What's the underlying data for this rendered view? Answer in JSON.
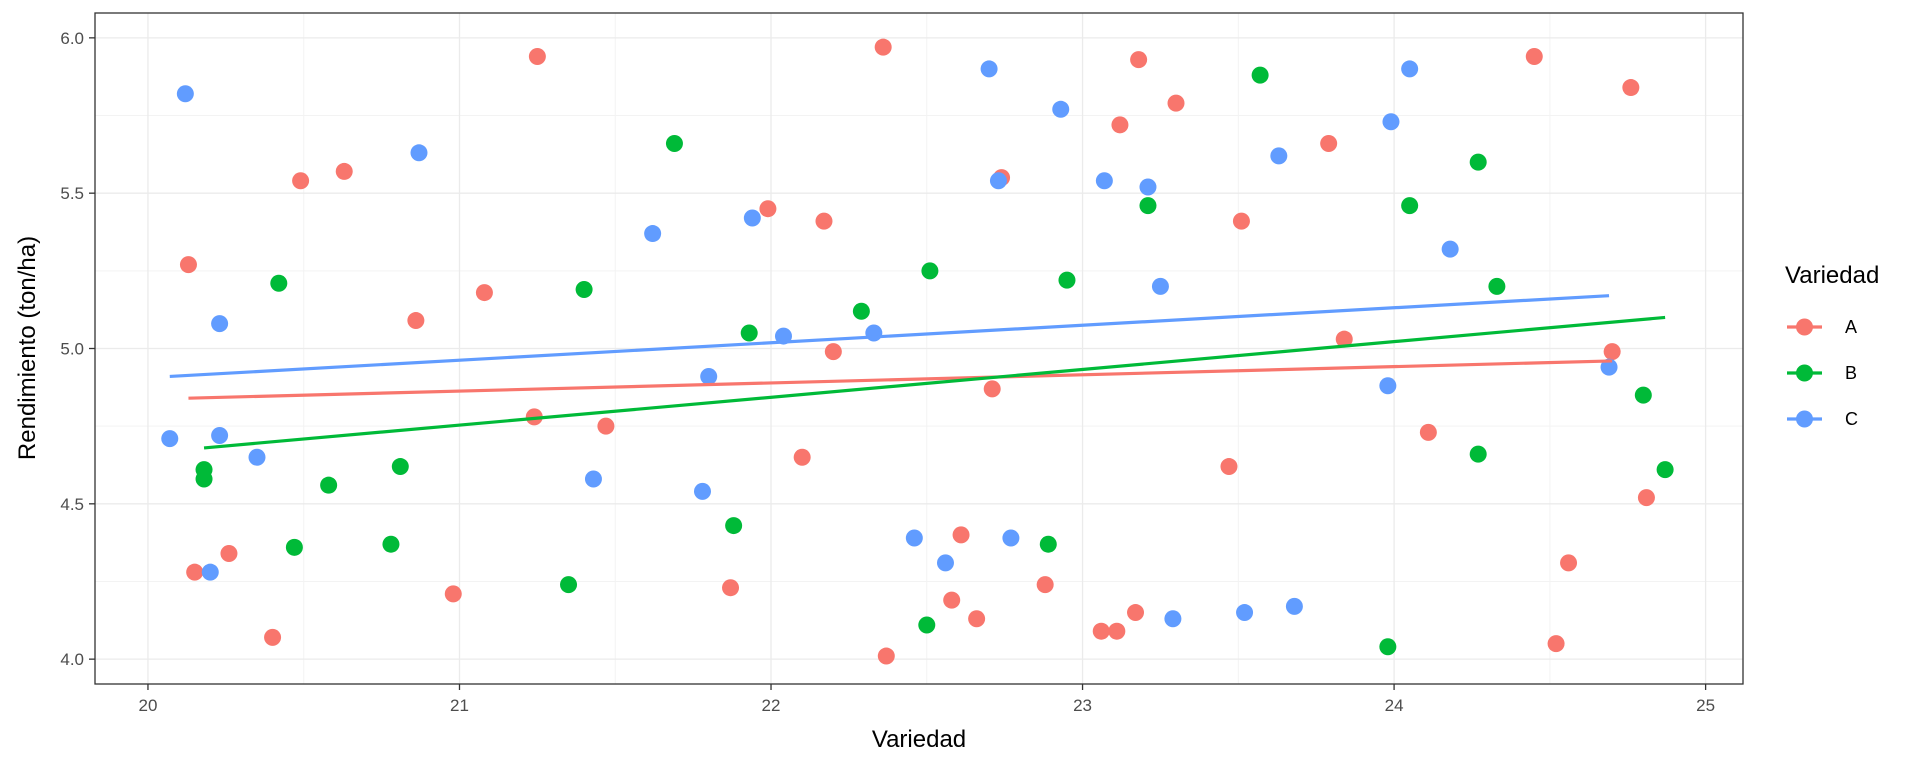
{
  "chart_data": {
    "type": "scatter",
    "title": "",
    "xlabel": "Variedad",
    "ylabel": "Rendimiento (ton/ha)",
    "xlim": [
      19.83,
      25.12
    ],
    "ylim": [
      3.92,
      6.08
    ],
    "x_ticks": [
      20,
      21,
      22,
      23,
      24,
      25
    ],
    "y_ticks": [
      4.0,
      4.5,
      5.0,
      5.5,
      6.0
    ],
    "x_tick_labels": [
      "20",
      "21",
      "22",
      "23",
      "24",
      "25"
    ],
    "y_tick_labels": [
      "4.0",
      "4.5",
      "5.0",
      "5.5",
      "6.0"
    ],
    "grid": true,
    "legend": {
      "title": "Variedad",
      "placement": "right"
    },
    "series": [
      {
        "name": "A",
        "color": "#F8766D",
        "points": [
          [
            20.13,
            5.27
          ],
          [
            20.15,
            4.28
          ],
          [
            20.26,
            4.34
          ],
          [
            20.4,
            4.07
          ],
          [
            20.49,
            5.54
          ],
          [
            20.63,
            5.57
          ],
          [
            20.86,
            5.09
          ],
          [
            20.98,
            4.21
          ],
          [
            21.08,
            5.18
          ],
          [
            21.24,
            4.78
          ],
          [
            21.25,
            5.94
          ],
          [
            21.47,
            4.75
          ],
          [
            21.87,
            4.23
          ],
          [
            21.99,
            5.45
          ],
          [
            22.1,
            4.65
          ],
          [
            22.17,
            5.41
          ],
          [
            22.2,
            4.99
          ],
          [
            22.36,
            5.97
          ],
          [
            22.37,
            4.01
          ],
          [
            22.61,
            4.4
          ],
          [
            22.58,
            4.19
          ],
          [
            22.66,
            4.13
          ],
          [
            22.71,
            4.87
          ],
          [
            22.74,
            5.55
          ],
          [
            22.88,
            4.24
          ],
          [
            23.06,
            4.09
          ],
          [
            23.11,
            4.09
          ],
          [
            23.12,
            5.72
          ],
          [
            23.17,
            4.15
          ],
          [
            23.18,
            5.93
          ],
          [
            23.3,
            5.79
          ],
          [
            23.47,
            4.62
          ],
          [
            23.51,
            5.41
          ],
          [
            23.79,
            5.66
          ],
          [
            23.84,
            5.03
          ],
          [
            24.11,
            4.73
          ],
          [
            24.45,
            5.94
          ],
          [
            24.52,
            4.05
          ],
          [
            24.56,
            4.31
          ],
          [
            24.7,
            4.99
          ],
          [
            24.76,
            5.84
          ],
          [
            24.81,
            4.52
          ]
        ],
        "trend": [
          [
            20.13,
            4.84
          ],
          [
            24.7,
            4.96
          ]
        ]
      },
      {
        "name": "B",
        "color": "#00BA38",
        "points": [
          [
            20.18,
            4.61
          ],
          [
            20.18,
            4.58
          ],
          [
            20.42,
            5.21
          ],
          [
            20.47,
            4.36
          ],
          [
            20.58,
            4.56
          ],
          [
            20.78,
            4.37
          ],
          [
            20.81,
            4.62
          ],
          [
            21.35,
            4.24
          ],
          [
            21.4,
            5.19
          ],
          [
            21.69,
            5.66
          ],
          [
            21.88,
            4.43
          ],
          [
            21.93,
            5.05
          ],
          [
            22.29,
            5.12
          ],
          [
            22.5,
            4.11
          ],
          [
            22.51,
            5.25
          ],
          [
            22.89,
            4.37
          ],
          [
            22.95,
            5.22
          ],
          [
            23.21,
            5.46
          ],
          [
            23.57,
            5.88
          ],
          [
            23.98,
            4.04
          ],
          [
            24.05,
            5.46
          ],
          [
            24.27,
            5.6
          ],
          [
            24.27,
            4.66
          ],
          [
            24.33,
            5.2
          ],
          [
            24.8,
            4.85
          ],
          [
            24.87,
            4.61
          ]
        ],
        "trend": [
          [
            20.18,
            4.68
          ],
          [
            24.87,
            5.1
          ]
        ]
      },
      {
        "name": "C",
        "color": "#619CFF",
        "points": [
          [
            20.07,
            4.71
          ],
          [
            20.12,
            5.82
          ],
          [
            20.2,
            4.28
          ],
          [
            20.23,
            5.08
          ],
          [
            20.23,
            4.72
          ],
          [
            20.35,
            4.65
          ],
          [
            20.87,
            5.63
          ],
          [
            21.43,
            4.58
          ],
          [
            21.62,
            5.37
          ],
          [
            21.78,
            4.54
          ],
          [
            21.8,
            4.91
          ],
          [
            21.94,
            5.42
          ],
          [
            22.04,
            5.04
          ],
          [
            22.33,
            5.05
          ],
          [
            22.46,
            4.39
          ],
          [
            22.56,
            4.31
          ],
          [
            22.7,
            5.9
          ],
          [
            22.73,
            5.54
          ],
          [
            22.77,
            4.39
          ],
          [
            22.93,
            5.77
          ],
          [
            23.07,
            5.54
          ],
          [
            23.21,
            5.52
          ],
          [
            23.25,
            5.2
          ],
          [
            23.29,
            4.13
          ],
          [
            23.52,
            4.15
          ],
          [
            23.63,
            5.62
          ],
          [
            23.68,
            4.17
          ],
          [
            23.98,
            4.88
          ],
          [
            23.99,
            5.73
          ],
          [
            24.05,
            5.9
          ],
          [
            24.18,
            5.32
          ],
          [
            24.69,
            4.94
          ]
        ],
        "trend": [
          [
            20.07,
            4.91
          ],
          [
            24.69,
            5.17
          ]
        ]
      }
    ]
  }
}
